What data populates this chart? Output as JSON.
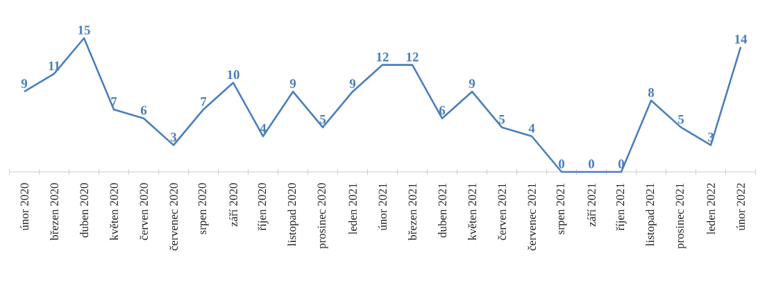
{
  "chart_data": {
    "type": "line",
    "marker": "none",
    "data_labels": true,
    "categories": [
      "únor 2020",
      "březen 2020",
      "duben 2020",
      "květen 2020",
      "červen 2020",
      "červenec 2020",
      "srpen 2020",
      "září 2020",
      "říjen 2020",
      "listopad 2020",
      "prosinec 2020",
      "leden 2021",
      "únor 2021",
      "březen 2021",
      "duben 2021",
      "květen 2021",
      "červen 2021",
      "červenec 2021",
      "srpen 2021",
      "září 2021",
      "říjen 2021",
      "listopad 2021",
      "prosinec 2021",
      "leden 2022",
      "únor 2022"
    ],
    "values": [
      9,
      11,
      15,
      7,
      6,
      3,
      7,
      10,
      4,
      9,
      5,
      9,
      12,
      12,
      6,
      9,
      5,
      4,
      0,
      0,
      0,
      8,
      5,
      3,
      14
    ],
    "color": "#4a7ebb"
  }
}
